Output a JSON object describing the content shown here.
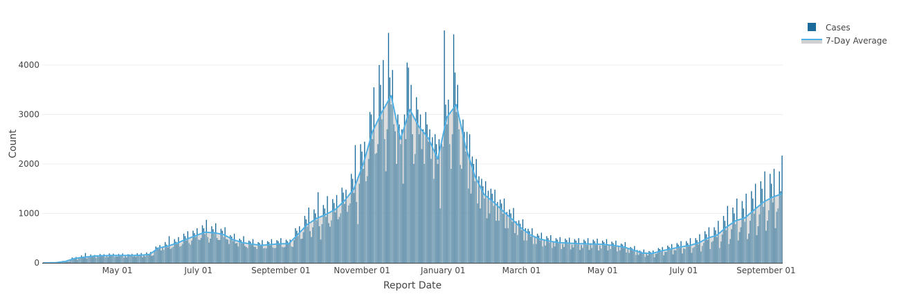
{
  "chart_data": {
    "type": "bar",
    "title": "",
    "xlabel": "Report Date",
    "ylabel": "Count",
    "ylim": [
      0,
      5000
    ],
    "y_ticks": [
      0,
      1000,
      2000,
      3000,
      4000
    ],
    "grid": true,
    "legend_position": "top-right",
    "start_date": "2020-03-06",
    "x_ticks": [
      {
        "date": "2020-05-01",
        "label": "May 01"
      },
      {
        "date": "2020-07-01",
        "label": "July 01"
      },
      {
        "date": "2020-09-01",
        "label": "September 01"
      },
      {
        "date": "2020-11-01",
        "label": "November 01"
      },
      {
        "date": "2021-01-01",
        "label": "January 01"
      },
      {
        "date": "2021-03-01",
        "label": "March 01"
      },
      {
        "date": "2021-05-01",
        "label": "May 01"
      },
      {
        "date": "2021-07-01",
        "label": "July 01"
      },
      {
        "date": "2021-09-01",
        "label": "September 01"
      }
    ],
    "legend": [
      {
        "name": "Cases",
        "color": "#1a6a9a"
      },
      {
        "name": "7-Day Average",
        "color": "#4fb0e5",
        "fill": "#d0d0d0"
      }
    ],
    "series": [
      {
        "name": "Cases",
        "values": [
          0,
          0,
          0,
          0,
          0,
          0,
          0,
          0,
          2,
          5,
          8,
          3,
          6,
          10,
          15,
          40,
          25,
          35,
          50,
          20,
          30,
          70,
          110,
          95,
          80,
          120,
          60,
          90,
          90,
          150,
          120,
          100,
          200,
          85,
          105,
          110,
          170,
          140,
          125,
          160,
          100,
          140,
          120,
          180,
          160,
          130,
          175,
          110,
          140,
          115,
          190,
          165,
          140,
          185,
          120,
          135,
          125,
          180,
          150,
          160,
          190,
          105,
          140,
          110,
          175,
          170,
          145,
          180,
          125,
          145,
          120,
          195,
          160,
          150,
          200,
          115,
          145,
          130,
          210,
          180,
          160,
          220,
          140,
          150,
          240,
          330,
          310,
          280,
          360,
          250,
          330,
          260,
          420,
          370,
          310,
          540,
          280,
          300,
          320,
          480,
          430,
          380,
          520,
          330,
          340,
          380,
          590,
          540,
          450,
          640,
          400,
          370,
          450,
          650,
          600,
          520,
          700,
          470,
          460,
          500,
          760,
          700,
          580,
          870,
          520,
          410,
          490,
          740,
          680,
          600,
          800,
          500,
          460,
          460,
          690,
          650,
          520,
          720,
          480,
          470,
          380,
          560,
          530,
          440,
          590,
          390,
          400,
          330,
          490,
          460,
          390,
          540,
          340,
          320,
          300,
          450,
          430,
          360,
          480,
          320,
          320,
          280,
          420,
          400,
          340,
          460,
          290,
          300,
          290,
          440,
          420,
          350,
          480,
          310,
          300,
          300,
          460,
          440,
          370,
          500,
          320,
          310,
          320,
          470,
          440,
          380,
          470,
          330,
          320,
          460,
          700,
          650,
          540,
          740,
          480,
          490,
          620,
          950,
          880,
          730,
          1120,
          640,
          520,
          720,
          1080,
          1000,
          860,
          1430,
          740,
          470,
          780,
          1170,
          1100,
          930,
          1350,
          800,
          730,
          860,
          1290,
          1210,
          1020,
          1370,
          880,
          930,
          1000,
          1520,
          1420,
          1190,
          1480,
          1030,
          1160,
          1200,
          1800,
          1700,
          1410,
          2380,
          1230,
          780,
          1600,
          2400,
          2250,
          1900,
          2450,
          1650,
          1750,
          2100,
          3050,
          3000,
          2500,
          3550,
          2200,
          2220,
          2400,
          4000,
          3600,
          2900,
          4100,
          2500,
          1850,
          2700,
          4650,
          3750,
          3200,
          3900,
          2800,
          2660,
          2000,
          3000,
          2800,
          2400,
          2700,
          1600,
          3000,
          2500,
          4050,
          3950,
          3000,
          3600,
          2600,
          2000,
          2200,
          3350,
          3100,
          2600,
          3000,
          2300,
          2700,
          2000,
          3050,
          2800,
          2450,
          2700,
          2100,
          2540,
          1700,
          2600,
          2400,
          2000,
          2500,
          1100,
          2400,
          2350,
          4700,
          3200,
          2800,
          3300,
          2400,
          1900,
          2600,
          4620,
          3850,
          3050,
          3600,
          2700,
          1980,
          1900,
          2900,
          2650,
          2250,
          2650,
          1500,
          2600,
          1400,
          2150,
          2000,
          1650,
          2100,
          1200,
          1750,
          1100,
          1700,
          1550,
          1300,
          1650,
          900,
          1460,
          1000,
          1500,
          1400,
          1150,
          1480,
          850,
          1230,
          850,
          1280,
          1200,
          990,
          1300,
          700,
          1030,
          700,
          1080,
          1000,
          830,
          1110,
          600,
          840,
          560,
          860,
          790,
          660,
          880,
          450,
          700,
          450,
          690,
          640,
          530,
          700,
          380,
          530,
          380,
          590,
          550,
          450,
          610,
          330,
          450,
          350,
          540,
          500,
          410,
          560,
          300,
          420,
          330,
          500,
          470,
          390,
          520,
          280,
          380,
          320,
          490,
          460,
          380,
          510,
          270,
          370,
          310,
          480,
          450,
          370,
          500,
          260,
          360,
          300,
          470,
          440,
          360,
          500,
          260,
          370,
          300,
          470,
          440,
          360,
          490,
          250,
          350,
          290,
          450,
          420,
          350,
          480,
          250,
          350,
          280,
          430,
          400,
          330,
          450,
          230,
          330,
          250,
          390,
          370,
          300,
          420,
          210,
          300,
          200,
          320,
          300,
          240,
          340,
          160,
          260,
          160,
          250,
          230,
          190,
          270,
          120,
          180,
          150,
          240,
          220,
          180,
          250,
          110,
          180,
          190,
          300,
          280,
          220,
          320,
          150,
          220,
          220,
          350,
          320,
          260,
          380,
          170,
          260,
          250,
          400,
          370,
          300,
          440,
          190,
          290,
          280,
          440,
          400,
          330,
          500,
          200,
          300,
          320,
          500,
          460,
          370,
          580,
          230,
          340,
          400,
          640,
          580,
          460,
          720,
          280,
          420,
          440,
          720,
          660,
          520,
          850,
          300,
          430,
          570,
          950,
          850,
          660,
          1150,
          380,
          480,
          680,
          1120,
          1000,
          780,
          1300,
          450,
          620,
          720,
          1250,
          1100,
          830,
          1400,
          480,
          590,
          850,
          1450,
          1300,
          990,
          1600,
          560,
          740,
          980,
          1650,
          1500,
          1130,
          1850,
          650,
          850,
          1060,
          1800,
          1600,
          1220,
          1900,
          700,
          1030,
          1100,
          1850,
          1450,
          2170
        ]
      },
      {
        "name": "7-Day Average",
        "weekly_values": [
          0,
          5,
          30,
          90,
          115,
          135,
          145,
          150,
          150,
          150,
          155,
          170,
          300,
          340,
          400,
          480,
          550,
          620,
          610,
          570,
          470,
          410,
          380,
          355,
          370,
          385,
          390,
          580,
          780,
          900,
          980,
          1080,
          1260,
          1500,
          2000,
          2660,
          3050,
          3380,
          2500,
          3100,
          2750,
          2520,
          2100,
          2950,
          3200,
          2350,
          1750,
          1380,
          1230,
          1050,
          880,
          700,
          560,
          480,
          440,
          410,
          400,
          390,
          385,
          380,
          370,
          350,
          320,
          260,
          200,
          190,
          240,
          280,
          320,
          350,
          400,
          500,
          560,
          720,
          850,
          910,
          1070,
          1230,
          1330,
          1400
        ]
      }
    ]
  }
}
